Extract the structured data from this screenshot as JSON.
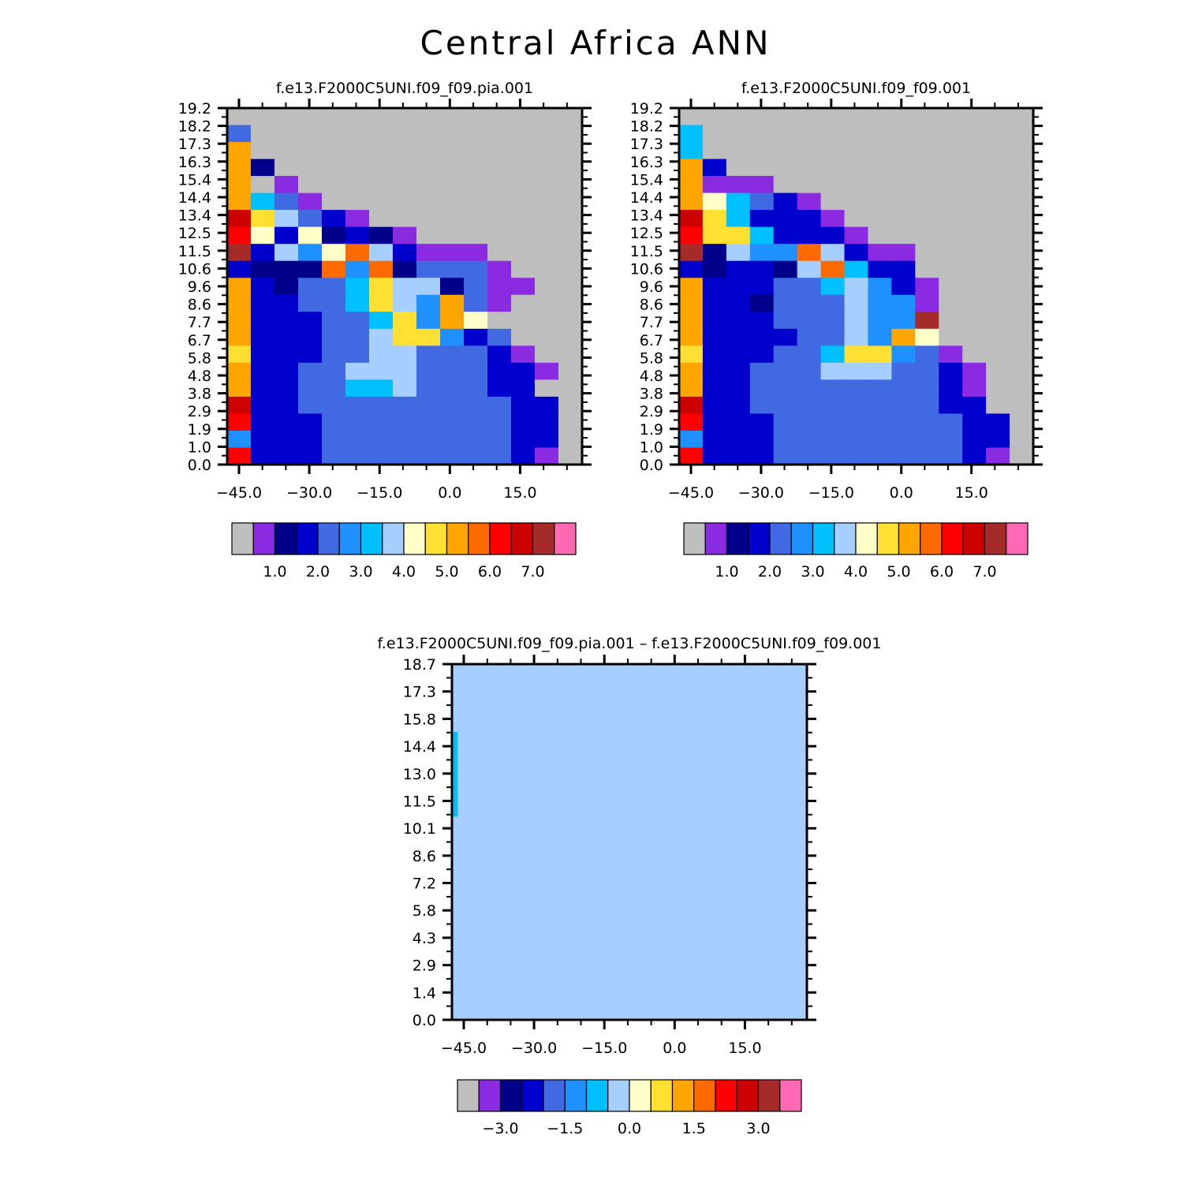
{
  "title": "Central Africa ANN",
  "palette": {
    "grey": "#bebebe",
    "violet": "#8a2be2",
    "darknavy": "#00008b",
    "navy": "#0000cd",
    "royal": "#4169e1",
    "dodger": "#1e90ff",
    "sky": "#00bfff",
    "pale": "#a6cfff",
    "cream": "#ffffc8",
    "gold": "#ffdf32",
    "orange": "#ffa500",
    "darkorange": "#ff6a00",
    "red": "#ff0000",
    "crimson": "#cd0000",
    "brown": "#a52a2a",
    "pink": "#ff69b4"
  },
  "chart_data": [
    {
      "type": "heatmap",
      "title": "f.e13.F2000C5UNI.f09_f09.pia.001",
      "xticks": [
        "-45.0",
        "-30.0",
        "-15.0",
        "0.0",
        "15.0"
      ],
      "yticks": [
        "0.0",
        "1.0",
        "1.9",
        "2.9",
        "3.8",
        "4.8",
        "5.8",
        "6.7",
        "7.7",
        "8.6",
        "9.6",
        "10.6",
        "11.5",
        "12.5",
        "13.4",
        "14.4",
        "15.4",
        "16.3",
        "17.3",
        "18.2",
        "19.2"
      ],
      "colorbar": {
        "colors": [
          "grey",
          "violet",
          "darknavy",
          "navy",
          "royal",
          "dodger",
          "sky",
          "pale",
          "cream",
          "gold",
          "orange",
          "darkorange",
          "red",
          "crimson",
          "brown",
          "pink"
        ],
        "labels": [
          "1.0",
          "2.0",
          "3.0",
          "4.0",
          "5.0",
          "6.0",
          "7.0"
        ]
      },
      "grid": [
        "GGGGGGGGGGGGGGG",
        "RGGGGGGGGGGGGGG",
        "KGGGGGGGGGGGGGG",
        "KDGGGGGGGGGGGGG",
        "KEVGGGGGGGGGGGG",
        "KSRVGGGGGGGGGGG",
        "kJPRNVGGGGGGGGG",
        "HCNCDNDVGGGGGGG",
        "bNPBCoPNVVVGGGG",
        "NDDDoBoDRRRVGGG",
        "KNDRRSJPPDRVVGG",
        "KNNRRSJPBKRVGGG",
        "KNNNRRSJBKCGGGG",
        "KNNNRRPJJBNRGGG",
        "JNNNRRPPRRRNVGG",
        "KNNRRPPPRRRNNVG",
        "KNNRRSSPRRRNNGG",
        "kNNRRRRRRRRRNNG",
        "HNNNRRRRRRRRNNG",
        "BNNNRRRRRRRRNNG",
        "HNNNRRRRRRRRNVG"
      ]
    },
    {
      "type": "heatmap",
      "title": "f.e13.F2000C5UNI.f09_f09.001",
      "xticks": [
        "-45.0",
        "-30.0",
        "-15.0",
        "0.0",
        "15.0"
      ],
      "yticks": [
        "0.0",
        "1.0",
        "1.9",
        "2.9",
        "3.8",
        "4.8",
        "5.8",
        "6.7",
        "7.7",
        "8.6",
        "9.6",
        "10.6",
        "11.5",
        "12.5",
        "13.4",
        "14.4",
        "15.4",
        "16.3",
        "17.3",
        "18.2",
        "19.2"
      ],
      "colorbar": {
        "colors": [
          "grey",
          "violet",
          "darknavy",
          "navy",
          "royal",
          "dodger",
          "sky",
          "pale",
          "cream",
          "gold",
          "orange",
          "darkorange",
          "red",
          "crimson",
          "brown",
          "pink"
        ],
        "labels": [
          "1.0",
          "2.0",
          "3.0",
          "4.0",
          "5.0",
          "6.0",
          "7.0"
        ]
      },
      "grid": [
        "GGGGGGGGGGGGGGG",
        "SGGGGGGGGGGGGGG",
        "SGGGGGGGGGGGGGG",
        "KNGGGGGGGGGGGGG",
        "KVVVGGGGGGGGGGG",
        "KCSRNVGGGGGGGGG",
        "kJSNNNVGGGGGGGG",
        "HJJSNNNVGGGGGGG",
        "bDPBBoPNVVGGGGG",
        "NDNNDPoSNNGGGGG",
        "KNNNRRSPBNVGGGG",
        "KNNDRRRPBBVGGGG",
        "KNNNRRRPBBbGGGG",
        "KNNNNRRPBKCGGGG",
        "JNNNRRSJJBRVGGG",
        "KNNRRRPPPRRNVGG",
        "KNNRRRRRRRRNVGG",
        "kNNRRRRRRRRNNGG",
        "HNNNRRRRRRRRNNG",
        "BNNNRRRRRRRRNNG",
        "HNNNRRRRRRRRNVG"
      ]
    },
    {
      "type": "heatmap",
      "title": "f.e13.F2000C5UNI.f09_f09.pia.001 – f.e13.F2000C5UNI.f09_f09.001",
      "xticks": [
        "-45.0",
        "-30.0",
        "-15.0",
        "0.0",
        "15.0"
      ],
      "yticks": [
        "0.0",
        "1.4",
        "2.9",
        "4.3",
        "5.8",
        "7.2",
        "8.6",
        "10.1",
        "11.5",
        "13.0",
        "14.4",
        "15.8",
        "17.3",
        "18.7"
      ],
      "colorbar": {
        "colors": [
          "grey",
          "violet",
          "darknavy",
          "navy",
          "royal",
          "dodger",
          "sky",
          "pale",
          "cream",
          "gold",
          "orange",
          "darkorange",
          "red",
          "crimson",
          "brown",
          "pink"
        ],
        "labels": [
          "-3.0",
          "-1.5",
          "0.0",
          "1.5",
          "3.0"
        ]
      },
      "grid": [
        "PPPPPPPPPPPPPPPPPPPPPPPPPPPPPPPPPPPPPPPPPPPPPPPPPPPPPPPPPPPPP",
        "PPPPPPPPPPPPPPPPPPPPPPPPPPPPPPPPPPPPPPPPPPPPPPPPPPPPPPPPPPPPP",
        "PPPPPPPPPPPPPPPPPPPPPPPPPPPPPPPPPPPPPPPPPPPPPPPPPPPPPPPPPPPPP",
        "PPPPPPPPPPPPPPPPPPPPPPPPPPPPPPPPPPPPPPPPPPPPPPPPPPPPPPPPPPPPP",
        "SPPPPPPPPPPPPPPPPPPPPPPPPPPPPPPPPPPPPPPPPPPPPPPPPPPPPPPPPPPPP",
        "SPPPPPPPPPPPPPPPPPPPPPPPPPPPPPPPPPPPPPPPPPPPPPPPPPPPPPPPPPPPP",
        "SPPPPPPPPPPPPPPPPPPPPPPPPPPPPPPPPPPPPPPPPPPPPPPPPPPPPPPPPPPPP",
        "SPPPPPPPPPPPPPPPPPPPPPPPPPPPPPPPPPPPPPPPPPPPPPPPPPPPPPPPPPPPP",
        "SPPPPPPPPPPPPPPPPPPPPPPPPPPPPPPPPPPPPPPPPPPPPPPPPPPPPPPPPPPPP",
        "PPPPPPPPPPPPPPPPPPPPPPPPPPPPPPPPPPPPPPPPPPPPPPPPPPPPPPPPPPPPP",
        "PPPPPPPPPPPPPPPPPPPPPPPPPPPPPPPPPPPPPPPPPPPPPPPPPPPPPPPPPPPPP",
        "PPPPPPPPPPPPPPPPPPPPPPPPPPPPPPPPPPPPPPPPPPPPPPPPPPPPPPPPPPPPP",
        "PPPPPPPPPPPPPPPPPPPPPPPPPPPPPPPPPPPPPPPPPPPPPPPPPPPPPPPPPPPPP",
        "PPPPPPPPPPPPPPPPPPPPPPPPPPPPPPPPPPPPPPPPPPPPPPPPPPPPPPPPPPPPP",
        "PPPPPPPPPPPPPPPPPPPPPPPPPPPPPPPPPPPPPPPPPPPPPPPPPPPPPPPPPPPPP",
        "PPPPPPPPPPPPPPPPPPPPPPPPPPPPPPPPPPPPPPPPPPPPPPPPPPPPPPPPPPPPP",
        "PPPPPPPPPPPPPPPPPPPPPPPPPPPPPPPPPPPPPPPPPPPPPPPPPPPPPPPPPPPPP",
        "PPPPPPPPPPPPPPPPPPPPPPPPPPPPPPPPPPPPPPPPPPPPPPPPPPPPPPPPPPPPP",
        "PPPPPPPPPPPPPPPPPPPPPPPPPPPPPPPPPPPPPPPPPPPPPPPPPPPPPPPPPPPPP",
        "PPPPPPPPPPPPPPPPPPPPPPPPPPPPPPPPPPPPPPPPPPPPPPPPPPPPPPPPPPPPP",
        "PPPPPPPPPPPPPPPPPPPPPPPPPPPPPPPPPPPPPPPPPPPPPPPPPPPPPPPPPPPPP"
      ]
    }
  ]
}
